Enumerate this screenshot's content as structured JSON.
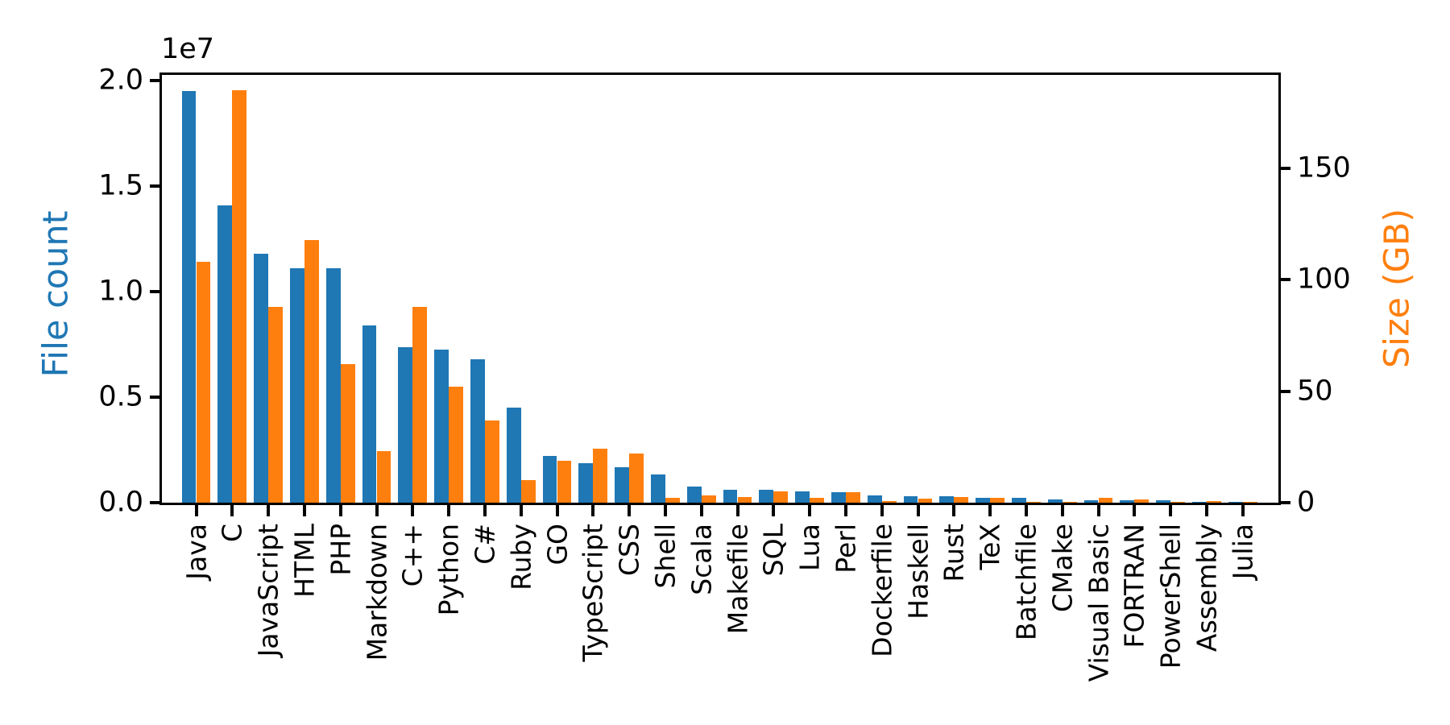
{
  "figure": {
    "background": "#ffffff",
    "offset_label": "1e7"
  },
  "chart_data": {
    "type": "bar",
    "title": "",
    "grid": false,
    "legend_position": "none",
    "categories": [
      "Java",
      "C",
      "JavaScript",
      "HTML",
      "PHP",
      "Markdown",
      "C++",
      "Python",
      "C#",
      "Ruby",
      "GO",
      "TypeScript",
      "CSS",
      "Shell",
      "Scala",
      "Makefile",
      "SQL",
      "Lua",
      "Perl",
      "Dockerfile",
      "Haskell",
      "Rust",
      "TeX",
      "Batchfile",
      "CMake",
      "Visual Basic",
      "FORTRAN",
      "PowerShell",
      "Assembly",
      "Julia"
    ],
    "series": [
      {
        "name": "File count",
        "axis": "left",
        "color": "#1f77b4",
        "values": [
          19500000,
          14100000,
          11800000,
          11100000,
          11100000,
          8400000,
          7350000,
          7250000,
          6800000,
          4500000,
          2220000,
          1880000,
          1680000,
          1340000,
          770000,
          620000,
          610000,
          540000,
          480000,
          330000,
          310000,
          300000,
          240000,
          230000,
          150000,
          130000,
          115000,
          110000,
          55000,
          30000
        ]
      },
      {
        "name": "Size (GB)",
        "axis": "right",
        "color": "#ff7f0e",
        "values": [
          108,
          185,
          88,
          118,
          62,
          23,
          88,
          52,
          37,
          10.3,
          18.8,
          24.2,
          22,
          2.2,
          3.3,
          2.5,
          5.1,
          2.2,
          4.6,
          0.7,
          1.9,
          2.5,
          2.2,
          0.3,
          0.2,
          2.1,
          1.5,
          0.3,
          0.7,
          0.1
        ]
      }
    ],
    "left_axis": {
      "label": "File count",
      "label_color": "#1f77b4",
      "offset_text": "1e7",
      "tick_values": [
        0,
        5000000,
        10000000,
        15000000,
        20000000
      ],
      "tick_labels": [
        "0.0",
        "0.5",
        "1.0",
        "1.5",
        "2.0"
      ],
      "range": [
        0,
        20270000
      ]
    },
    "right_axis": {
      "label": "Size (GB)",
      "label_color": "#ff7f0e",
      "tick_values": [
        0,
        50,
        100,
        150
      ],
      "tick_labels": [
        "0",
        "50",
        "100",
        "150"
      ],
      "range": [
        0,
        191.9
      ]
    },
    "x_axis": {
      "label": "",
      "tick_rotation_deg": 90
    }
  }
}
